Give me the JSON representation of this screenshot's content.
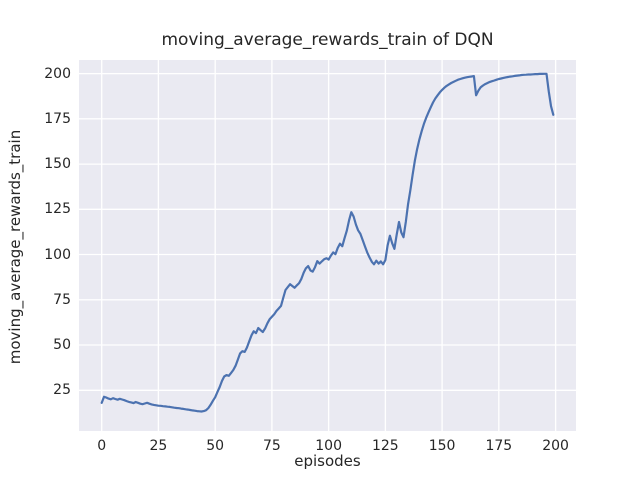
{
  "chart_data": {
    "type": "line",
    "title": "moving_average_rewards_train of DQN",
    "xlabel": "episodes",
    "ylabel": "moving_average_rewards_train",
    "x_ticks": [
      0,
      25,
      50,
      75,
      100,
      125,
      150,
      175,
      200
    ],
    "y_ticks": [
      25,
      50,
      75,
      100,
      125,
      150,
      175,
      200
    ],
    "xlim": [
      -10,
      209
    ],
    "ylim": [
      2.5,
      207.5
    ],
    "grid": true,
    "legend": false,
    "colors": {
      "line": "#4C72B0",
      "axes_background": "#EAEAF2",
      "gridline": "#FFFFFF",
      "text": "#262626",
      "figure_background": "#FFFFFF"
    },
    "series": [
      {
        "name": "moving_average_rewards_train",
        "x_is_index": true,
        "x_start": 0,
        "x_step": 1,
        "values": [
          18.0,
          21.4,
          21.0,
          20.4,
          20.0,
          20.6,
          20.2,
          19.8,
          20.3,
          19.9,
          19.5,
          19.0,
          18.6,
          18.3,
          17.9,
          18.5,
          18.1,
          17.6,
          17.3,
          17.7,
          18.1,
          17.6,
          17.2,
          16.9,
          16.7,
          16.5,
          16.4,
          16.2,
          16.1,
          15.9,
          15.8,
          15.6,
          15.4,
          15.2,
          15.1,
          14.9,
          14.7,
          14.5,
          14.3,
          14.1,
          13.9,
          13.7,
          13.5,
          13.4,
          13.3,
          13.5,
          14.0,
          15.2,
          17.0,
          19.2,
          21.2,
          24.0,
          26.8,
          30.2,
          32.6,
          33.4,
          33.0,
          34.6,
          36.2,
          38.6,
          42.0,
          45.4,
          46.6,
          46.2,
          48.6,
          52.0,
          55.4,
          57.6,
          56.6,
          59.4,
          58.2,
          57.2,
          59.2,
          62.0,
          64.2,
          65.6,
          67.0,
          68.8,
          70.2,
          71.6,
          76.0,
          80.4,
          82.0,
          83.6,
          82.6,
          81.6,
          83.0,
          84.2,
          86.6,
          90.0,
          92.4,
          93.6,
          91.2,
          90.6,
          93.0,
          96.4,
          95.0,
          96.2,
          97.4,
          98.0,
          97.2,
          99.4,
          101.2,
          100.2,
          103.6,
          106.0,
          104.6,
          109.0,
          113.2,
          119.0,
          123.4,
          121.0,
          116.6,
          113.4,
          111.4,
          108.0,
          104.6,
          101.2,
          98.4,
          96.0,
          94.6,
          96.6,
          95.0,
          96.2,
          94.6,
          97.0,
          105.0,
          110.4,
          106.2,
          103.2,
          111.0,
          118.0,
          112.2,
          109.6,
          118.0,
          128.0,
          135.4,
          144.0,
          152.0,
          158.2,
          163.6,
          168.2,
          172.2,
          175.6,
          178.6,
          181.4,
          184.0,
          186.2,
          188.0,
          189.6,
          191.0,
          192.2,
          193.2,
          194.0,
          194.8,
          195.4,
          196.0,
          196.6,
          197.0,
          197.4,
          197.7,
          198.0,
          198.2,
          198.4,
          198.6,
          188.0,
          190.6,
          192.4,
          193.4,
          194.2,
          194.8,
          195.4,
          195.8,
          196.2,
          196.6,
          197.0,
          197.3,
          197.6,
          197.9,
          198.1,
          198.3,
          198.5,
          198.7,
          198.9,
          199.0,
          199.2,
          199.3,
          199.4,
          199.5,
          199.5,
          199.6,
          199.7,
          199.7,
          199.8,
          199.8,
          199.9,
          199.9,
          190.0,
          182.0,
          177.2
        ]
      }
    ]
  }
}
